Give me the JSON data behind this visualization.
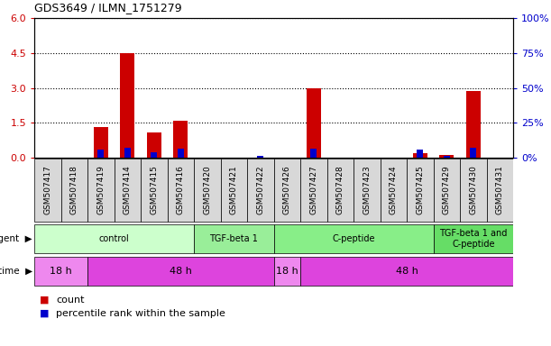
{
  "title": "GDS3649 / ILMN_1751279",
  "samples": [
    "GSM507417",
    "GSM507418",
    "GSM507419",
    "GSM507414",
    "GSM507415",
    "GSM507416",
    "GSM507420",
    "GSM507421",
    "GSM507422",
    "GSM507426",
    "GSM507427",
    "GSM507428",
    "GSM507423",
    "GSM507424",
    "GSM507425",
    "GSM507429",
    "GSM507430",
    "GSM507431"
  ],
  "count_values": [
    0.0,
    0.0,
    1.3,
    4.5,
    1.1,
    1.6,
    0.0,
    0.0,
    0.0,
    0.0,
    3.0,
    0.0,
    0.0,
    0.0,
    0.2,
    0.1,
    2.85,
    0.0
  ],
  "percentile_values": [
    0.0,
    0.0,
    0.35,
    0.42,
    0.25,
    0.38,
    0.0,
    0.0,
    0.07,
    0.0,
    0.4,
    0.0,
    0.0,
    0.0,
    0.35,
    0.07,
    0.42,
    0.0
  ],
  "ylim_left": [
    0,
    6
  ],
  "ylim_right": [
    0,
    100
  ],
  "yticks_left": [
    0,
    1.5,
    3.0,
    4.5,
    6.0
  ],
  "yticks_right": [
    0,
    25,
    50,
    75,
    100
  ],
  "count_color": "#cc0000",
  "percentile_color": "#0000cc",
  "agent_groups": [
    {
      "label": "control",
      "start": 0,
      "end": 5,
      "color": "#ccffcc"
    },
    {
      "label": "TGF-beta 1",
      "start": 6,
      "end": 8,
      "color": "#99ee99"
    },
    {
      "label": "C-peptide",
      "start": 9,
      "end": 14,
      "color": "#88ee88"
    },
    {
      "label": "TGF-beta 1 and\nC-peptide",
      "start": 15,
      "end": 17,
      "color": "#66dd66"
    }
  ],
  "time_groups": [
    {
      "label": "18 h",
      "start": 0,
      "end": 1,
      "color": "#ee88ee"
    },
    {
      "label": "48 h",
      "start": 2,
      "end": 8,
      "color": "#dd44dd"
    },
    {
      "label": "18 h",
      "start": 9,
      "end": 9,
      "color": "#ee88ee"
    },
    {
      "label": "48 h",
      "start": 10,
      "end": 17,
      "color": "#dd44dd"
    }
  ],
  "bg_color": "#ffffff",
  "grid_color": "#000000",
  "tick_color_left": "#cc0000",
  "tick_color_right": "#0000cc",
  "xtick_bg": "#d8d8d8"
}
